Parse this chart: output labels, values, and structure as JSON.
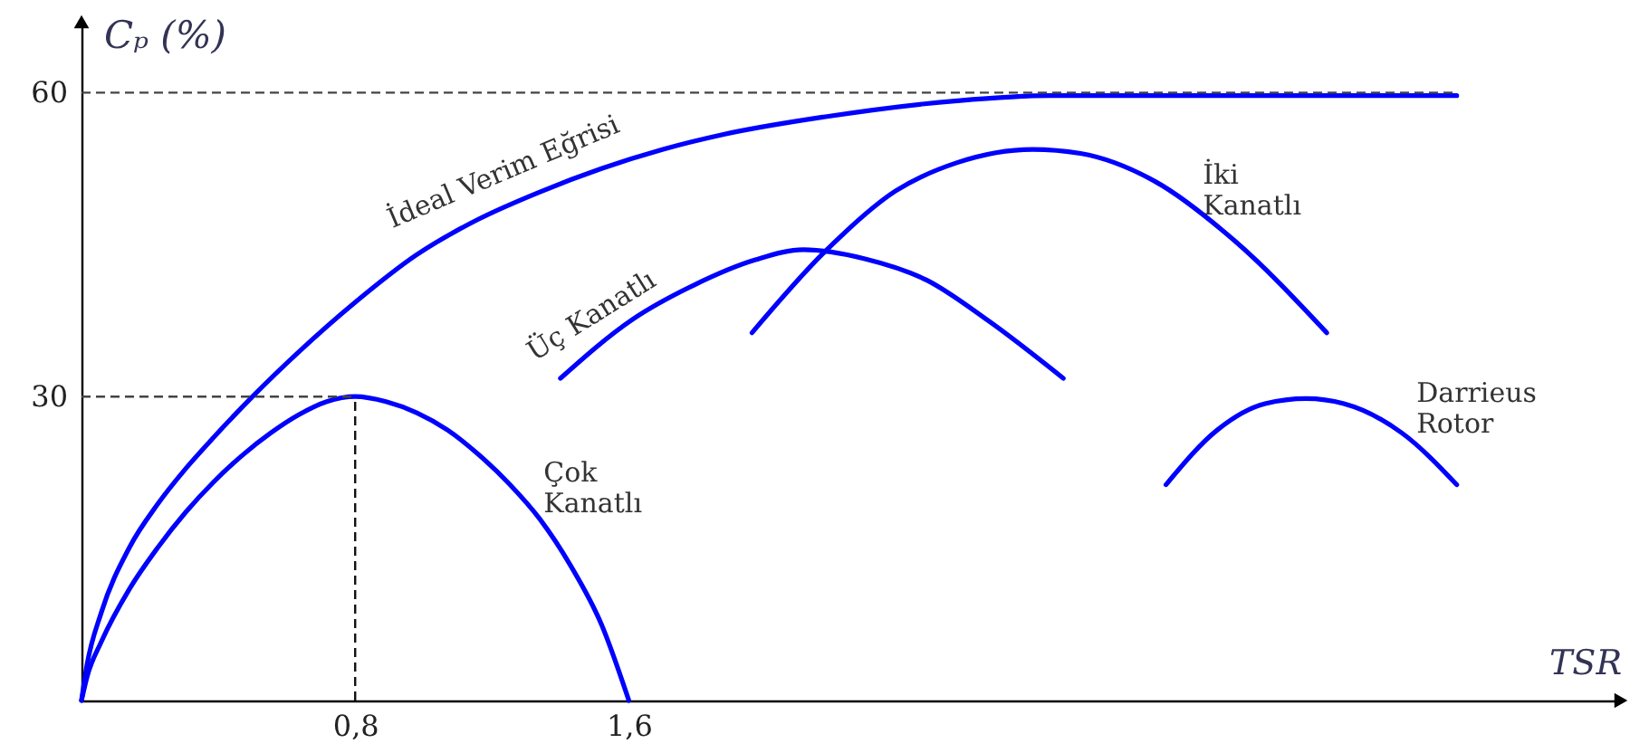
{
  "chart_data": {
    "type": "line",
    "xlabel": "TSR",
    "ylabel": "Cₚ (%)",
    "xlim": [
      0,
      4.5
    ],
    "ylim": [
      0,
      67
    ],
    "xticks": [
      {
        "value": 0.8,
        "label": "0,8"
      },
      {
        "value": 1.6,
        "label": "1,6"
      }
    ],
    "yticks": [
      30,
      60
    ],
    "grid": false,
    "legend": false,
    "line_style": "solid",
    "series": [
      {
        "name": "İdeal Verim Eğrisi",
        "color": "#0000ff",
        "x": [
          0,
          0.016,
          0.058,
          0.14,
          0.223,
          0.305,
          0.387,
          0.5,
          0.635,
          0.8,
          0.98,
          1.16,
          1.34,
          1.52,
          1.7,
          1.88,
          2.17,
          2.56,
          2.83,
          4.02
        ],
        "values": [
          0,
          3.5,
          8.7,
          15.1,
          19.4,
          22.9,
          26.0,
          30,
          34.4,
          39.3,
          44.0,
          47.5,
          50.2,
          52.5,
          54.4,
          55.9,
          57.6,
          59.2,
          59.7,
          59.7
        ]
      },
      {
        "name": "Çok Kanatlı",
        "color": "#0000ff",
        "x": [
          0,
          0.016,
          0.058,
          0.14,
          0.223,
          0.305,
          0.387,
          0.47,
          0.553,
          0.635,
          0.717,
          0.8,
          0.89,
          0.98,
          1.07,
          1.16,
          1.25,
          1.34,
          1.43,
          1.52,
          1.6
        ],
        "values": [
          0,
          2.3,
          5.8,
          11.0,
          15.1,
          18.6,
          21.6,
          24.2,
          26.4,
          28.2,
          29.5,
          30,
          29.5,
          28.4,
          26.7,
          24.3,
          21.4,
          17.9,
          13.3,
          7.5,
          0
        ]
      },
      {
        "name": "Üç Kanatlı",
        "color": "#0000ff",
        "x": [
          1.4,
          1.61,
          1.79,
          1.97,
          2.11,
          2.29,
          2.47,
          2.65,
          2.87
        ],
        "values": [
          31.8,
          37.6,
          41.0,
          43.5,
          44.5,
          43.6,
          41.5,
          37.5,
          31.8
        ]
      },
      {
        "name": "İki Kanatlı",
        "color": "#0000ff",
        "x": [
          1.96,
          2.17,
          2.38,
          2.56,
          2.78,
          2.92,
          3.14,
          3.37,
          3.64
        ],
        "values": [
          36.3,
          44.2,
          50.3,
          53.1,
          54.4,
          54.0,
          51.2,
          45.4,
          36.3
        ]
      },
      {
        "name": "Darrieus Rotor",
        "color": "#0000ff",
        "x": [
          3.17,
          3.32,
          3.46,
          3.58,
          3.69,
          3.86,
          4.02
        ],
        "values": [
          21.3,
          26.7,
          29.3,
          29.8,
          29.3,
          26.4,
          21.3
        ]
      }
    ],
    "ref_lines": [
      {
        "axis": "y",
        "value": 60,
        "color": "#444444",
        "line_style": "dashed"
      },
      {
        "axis": "y",
        "value": 30,
        "color": "#444444",
        "line_style": "dashed"
      },
      {
        "axis": "x",
        "value": 0.8,
        "color": "#111111",
        "line_style": "dashed"
      }
    ]
  }
}
